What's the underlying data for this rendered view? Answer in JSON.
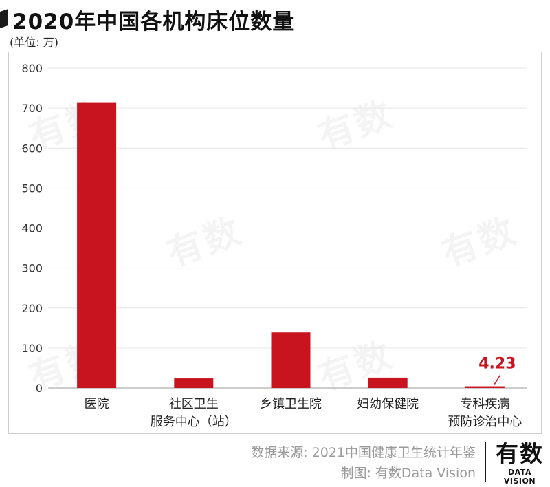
{
  "header": {
    "title": "2020年中国各机构床位数量",
    "unit": "(单位: 万)"
  },
  "chart_data": {
    "type": "bar",
    "categories": [
      [
        "医院"
      ],
      [
        "社区卫生",
        "服务中心（站）"
      ],
      [
        "乡镇卫生院"
      ],
      [
        "妇幼保健院"
      ],
      [
        "专科疾病",
        "预防诊治中心"
      ]
    ],
    "values": [
      713,
      24,
      139,
      26,
      4.23
    ],
    "data_labels": [
      "",
      "",
      "",
      "",
      "4.23"
    ],
    "yticks": [
      "0",
      "100",
      "200",
      "300",
      "400",
      "500",
      "600",
      "700",
      "800"
    ],
    "ylim": [
      0,
      800
    ],
    "grid": true,
    "bar_color": "#c8141e",
    "label_color": "#c8141e"
  },
  "footer": {
    "source": "数据来源: 2021中国健康卫生统计年鉴",
    "maker": "制图: 有数Data Vision"
  },
  "logo": {
    "main": "有数",
    "sub": "DATA VISION"
  },
  "watermark": "有数"
}
